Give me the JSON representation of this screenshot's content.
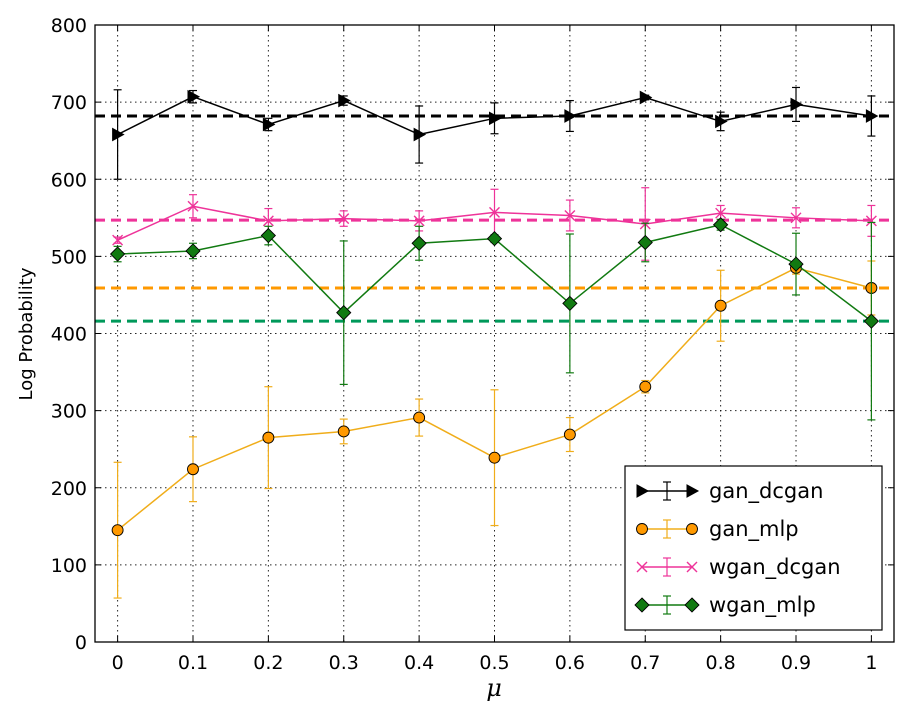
{
  "chart_data": {
    "type": "line",
    "title": "",
    "xlabel": "μ",
    "ylabel": "Log Probability",
    "x": [
      0,
      0.1,
      0.2,
      0.3,
      0.4,
      0.5,
      0.6,
      0.7,
      0.8,
      0.9,
      1
    ],
    "x_tick_labels": [
      "0",
      "0.1",
      "0.2",
      "0.3",
      "0.4",
      "0.5",
      "0.6",
      "0.7",
      "0.8",
      "0.9",
      "1"
    ],
    "xlim": [
      -0.03,
      1.03
    ],
    "ylim": [
      0,
      800
    ],
    "y_ticks": [
      0,
      100,
      200,
      300,
      400,
      500,
      600,
      700,
      800
    ],
    "y_tick_labels": [
      "0",
      "100",
      "200",
      "300",
      "400",
      "500",
      "600",
      "700",
      "800"
    ],
    "grid": true,
    "legend_position": "bottom-right",
    "series": [
      {
        "name": "gan_dcgan",
        "color": "#000000",
        "marker": "triangle-right",
        "values": [
          658,
          707,
          671,
          702,
          658,
          679,
          682,
          706,
          675,
          697,
          682
        ],
        "errors": [
          58,
          8,
          8,
          6,
          37,
          20,
          20,
          3,
          12,
          22,
          26
        ],
        "baseline": 682
      },
      {
        "name": "gan_mlp",
        "color": "#f0ad1a",
        "marker_fill": "#ff9900",
        "marker": "circle",
        "values": [
          145,
          224,
          265,
          273,
          291,
          239,
          269,
          331,
          436,
          485,
          459
        ],
        "errors": [
          88,
          42,
          66,
          16,
          24,
          88,
          22,
          8,
          46,
          8,
          35
        ],
        "baseline": 459
      },
      {
        "name": "wgan_dcgan",
        "color": "#ee3399",
        "marker": "x",
        "values": [
          521,
          565,
          546,
          549,
          546,
          557,
          553,
          542,
          556,
          550,
          546
        ],
        "errors": [
          4,
          15,
          16,
          10,
          13,
          30,
          20,
          47,
          10,
          13,
          20
        ],
        "baseline": 547
      },
      {
        "name": "wgan_mlp",
        "color": "#117a11",
        "marker_fill": "#117a11",
        "marker": "diamond",
        "values": [
          503,
          507,
          527,
          427,
          517,
          523,
          439,
          518,
          541,
          490,
          416
        ],
        "errors": [
          10,
          10,
          12,
          93,
          22,
          5,
          90,
          25,
          7,
          40,
          128
        ],
        "baseline_color": "#00995a",
        "baseline": 416
      }
    ]
  }
}
